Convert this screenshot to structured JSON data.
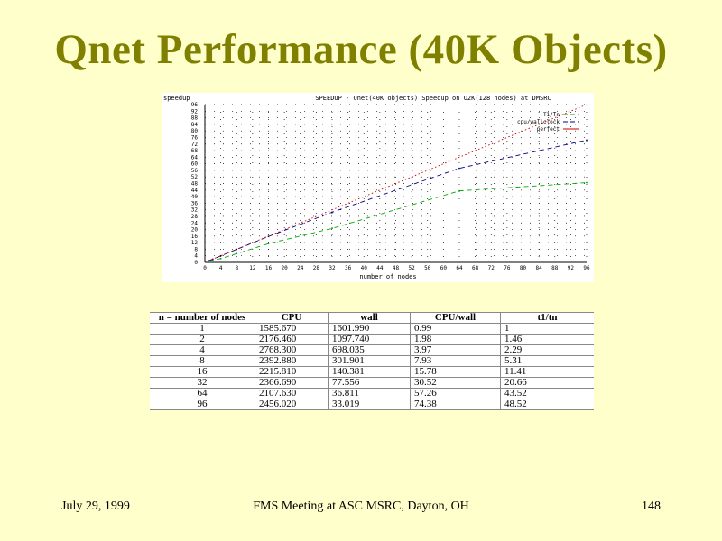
{
  "slide": {
    "title": "Qnet Performance (40K Objects)",
    "footer_date": "July 29,  1999",
    "footer_center": "FMS Meeting at ASC MSRC, Dayton, OH",
    "footer_page": "148"
  },
  "chart_data": {
    "type": "line",
    "title": "SPEEDUP - Qnet(40K objects) Speedup on O2K(128 nodes) at DMSRC",
    "xlabel": "number of nodes",
    "ylabel": "speedup",
    "xlim": [
      0,
      96
    ],
    "ylim": [
      0,
      96
    ],
    "x_ticks": [
      0,
      4,
      8,
      12,
      16,
      20,
      24,
      28,
      32,
      36,
      40,
      44,
      48,
      52,
      56,
      60,
      64,
      68,
      72,
      76,
      80,
      84,
      88,
      92,
      96
    ],
    "y_ticks": [
      0,
      4,
      8,
      12,
      16,
      20,
      24,
      28,
      32,
      36,
      40,
      44,
      48,
      52,
      56,
      60,
      64,
      68,
      72,
      76,
      80,
      84,
      88,
      92,
      96
    ],
    "grid": true,
    "legend_position": "top-right",
    "series": [
      {
        "name": "T1/Tn",
        "color": "#00aa00",
        "style": "dashed",
        "x": [
          1,
          2,
          4,
          8,
          16,
          32,
          64,
          96
        ],
        "y": [
          1,
          1.46,
          2.29,
          5.31,
          11.41,
          20.66,
          43.52,
          48.52
        ]
      },
      {
        "name": "cpu/wallclock",
        "color": "#000080",
        "style": "dashed",
        "x": [
          1,
          2,
          4,
          8,
          16,
          32,
          64,
          96
        ],
        "y": [
          0.99,
          1.98,
          3.97,
          7.93,
          15.78,
          30.52,
          57.26,
          74.38
        ]
      },
      {
        "name": "perfect",
        "color": "#cc0000",
        "style": "dotted",
        "x": [
          0,
          96
        ],
        "y": [
          0,
          96
        ]
      }
    ]
  },
  "table": {
    "headers": [
      "n = number of nodes",
      "CPU",
      "wall",
      "CPU/wall",
      "t1/tn"
    ],
    "rows": [
      [
        "1",
        "1585.670",
        "1601.990",
        "0.99",
        "1"
      ],
      [
        "2",
        "2176.460",
        "1097.740",
        "1.98",
        "1.46"
      ],
      [
        "4",
        "2768.300",
        "698.035",
        "3.97",
        "2.29"
      ],
      [
        "8",
        "2392.880",
        "301.901",
        "7.93",
        "5.31"
      ],
      [
        "16",
        "2215.810",
        "140.381",
        "15.78",
        "11.41"
      ],
      [
        "32",
        "2366.690",
        "77.556",
        "30.52",
        "20.66"
      ],
      [
        "64",
        "2107.630",
        "36.811",
        "57.26",
        "43.52"
      ],
      [
        "96",
        "2456.020",
        "33.019",
        "74.38",
        "48.52"
      ]
    ]
  }
}
